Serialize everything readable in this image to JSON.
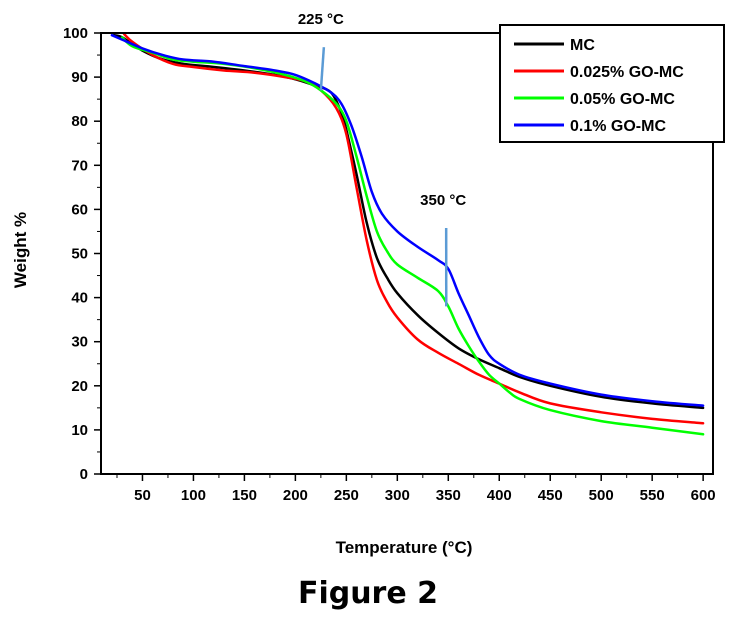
{
  "caption": "Figure 2",
  "chart_data": {
    "type": "line",
    "xlabel": "Temperature (°C)",
    "ylabel": "Weight %",
    "xlim": [
      10,
      600
    ],
    "ylim": [
      0,
      100
    ],
    "x_ticks": [
      50,
      100,
      150,
      200,
      250,
      300,
      350,
      400,
      450,
      500,
      550,
      600
    ],
    "y_ticks": [
      0,
      10,
      20,
      30,
      40,
      50,
      60,
      70,
      80,
      90,
      100
    ],
    "legend_position": "top-right",
    "annotations": [
      {
        "text": "225 °C",
        "x": 225,
        "y": 87,
        "label_x": 225,
        "label_y": 102
      },
      {
        "text": "350 °C",
        "x": 348,
        "y": 38,
        "label_x": 345,
        "label_y": 61
      }
    ],
    "series": [
      {
        "name": "MC",
        "color": "#000000",
        "points": [
          [
            22,
            99.5
          ],
          [
            30,
            99
          ],
          [
            50,
            96
          ],
          [
            70,
            94
          ],
          [
            90,
            93
          ],
          [
            120,
            92.3
          ],
          [
            150,
            91.5
          ],
          [
            180,
            90.5
          ],
          [
            200,
            89.5
          ],
          [
            220,
            88
          ],
          [
            235,
            86.5
          ],
          [
            245,
            82
          ],
          [
            250,
            78
          ],
          [
            260,
            68
          ],
          [
            270,
            57
          ],
          [
            280,
            49
          ],
          [
            290,
            44.5
          ],
          [
            300,
            41
          ],
          [
            320,
            36
          ],
          [
            340,
            32
          ],
          [
            360,
            28.5
          ],
          [
            380,
            26
          ],
          [
            400,
            24
          ],
          [
            420,
            22
          ],
          [
            450,
            20
          ],
          [
            500,
            17.5
          ],
          [
            550,
            16
          ],
          [
            600,
            15
          ]
        ]
      },
      {
        "name": "0.025% GO-MC",
        "color": "#ff0000",
        "points": [
          [
            32,
            99.8
          ],
          [
            40,
            98
          ],
          [
            60,
            95
          ],
          [
            80,
            93
          ],
          [
            100,
            92.3
          ],
          [
            130,
            91.5
          ],
          [
            160,
            91
          ],
          [
            190,
            90
          ],
          [
            210,
            89
          ],
          [
            225,
            87
          ],
          [
            240,
            83
          ],
          [
            250,
            77
          ],
          [
            260,
            65
          ],
          [
            270,
            53
          ],
          [
            280,
            44
          ],
          [
            290,
            39
          ],
          [
            300,
            35.5
          ],
          [
            320,
            30.5
          ],
          [
            340,
            27.5
          ],
          [
            360,
            25
          ],
          [
            380,
            22.5
          ],
          [
            400,
            20.5
          ],
          [
            420,
            18.5
          ],
          [
            450,
            16
          ],
          [
            500,
            14
          ],
          [
            550,
            12.5
          ],
          [
            600,
            11.5
          ]
        ]
      },
      {
        "name": "0.05% GO-MC",
        "color": "#00ff00",
        "points": [
          [
            30,
            99
          ],
          [
            40,
            97
          ],
          [
            60,
            95.5
          ],
          [
            80,
            94
          ],
          [
            100,
            93.5
          ],
          [
            130,
            93
          ],
          [
            160,
            92
          ],
          [
            190,
            90.5
          ],
          [
            210,
            89
          ],
          [
            225,
            87
          ],
          [
            240,
            84
          ],
          [
            250,
            80
          ],
          [
            260,
            72
          ],
          [
            270,
            63
          ],
          [
            280,
            55
          ],
          [
            290,
            50.5
          ],
          [
            300,
            47.5
          ],
          [
            320,
            44.5
          ],
          [
            340,
            41.5
          ],
          [
            350,
            38
          ],
          [
            360,
            33
          ],
          [
            370,
            29
          ],
          [
            380,
            25.5
          ],
          [
            390,
            22.5
          ],
          [
            400,
            20.5
          ],
          [
            410,
            18.5
          ],
          [
            420,
            17
          ],
          [
            450,
            14.5
          ],
          [
            500,
            12
          ],
          [
            550,
            10.5
          ],
          [
            600,
            9
          ]
        ]
      },
      {
        "name": "0.1% GO-MC",
        "color": "#0000ff",
        "points": [
          [
            20,
            99.5
          ],
          [
            30,
            98.5
          ],
          [
            50,
            96.5
          ],
          [
            70,
            95
          ],
          [
            90,
            94
          ],
          [
            120,
            93.5
          ],
          [
            150,
            92.5
          ],
          [
            180,
            91.5
          ],
          [
            200,
            90.5
          ],
          [
            220,
            88.5
          ],
          [
            235,
            86.5
          ],
          [
            245,
            84
          ],
          [
            255,
            79
          ],
          [
            265,
            72
          ],
          [
            275,
            64
          ],
          [
            285,
            59
          ],
          [
            300,
            55
          ],
          [
            320,
            51.5
          ],
          [
            340,
            48.5
          ],
          [
            350,
            46.5
          ],
          [
            360,
            41
          ],
          [
            370,
            36
          ],
          [
            380,
            31
          ],
          [
            390,
            27
          ],
          [
            400,
            25
          ],
          [
            420,
            22.5
          ],
          [
            450,
            20.5
          ],
          [
            500,
            18
          ],
          [
            550,
            16.5
          ],
          [
            600,
            15.5
          ]
        ]
      }
    ]
  }
}
